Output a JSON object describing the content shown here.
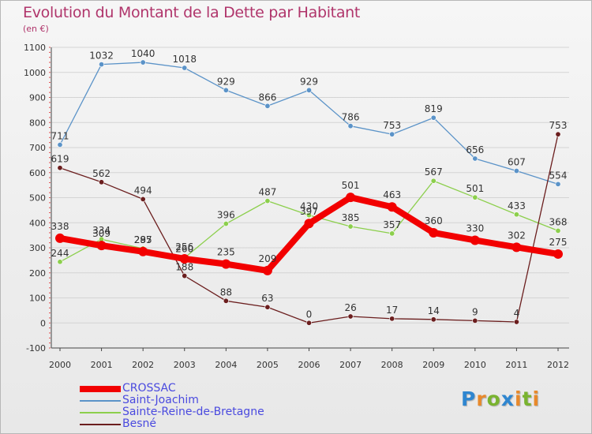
{
  "title": "Evolution du Montant de la Dette par Habitant",
  "subtitle": "(en €)",
  "brand": {
    "letters": [
      "P",
      "r",
      "o",
      "x",
      "i",
      "t",
      "i"
    ],
    "colors": [
      "#2f86d0",
      "#e8892b",
      "#79b32f",
      "#2f86d0",
      "#e8892b",
      "#79b32f",
      "#e8892b"
    ]
  },
  "chart_data": {
    "type": "line",
    "x": [
      "2000",
      "2001",
      "2002",
      "2003",
      "2004",
      "2005",
      "2006",
      "2007",
      "2008",
      "2009",
      "2010",
      "2011",
      "2012"
    ],
    "ylim": [
      -100,
      1100
    ],
    "yticks": [
      -100,
      0,
      100,
      200,
      300,
      400,
      500,
      600,
      700,
      800,
      900,
      1000,
      1100
    ],
    "grid": "horizontal",
    "legend_position": "bottom-left",
    "series": [
      {
        "name": "Saint-Joachim",
        "color": "#5b93c8",
        "values": [
          711,
          1032,
          1040,
          1018,
          929,
          866,
          929,
          786,
          753,
          819,
          656,
          607,
          554
        ]
      },
      {
        "name": "Sainte-Reine-de-Bretagne",
        "color": "#8ccf4c",
        "values": [
          244,
          334,
          297,
          260,
          396,
          487,
          430,
          385,
          357,
          567,
          501,
          433,
          368
        ]
      },
      {
        "name": "Besné",
        "color": "#6b1e1e",
        "values": [
          619,
          562,
          494,
          188,
          88,
          63,
          0,
          26,
          17,
          14,
          9,
          4,
          753
        ]
      },
      {
        "name": "CROSSAC",
        "color": "#f20000",
        "values": [
          338,
          309,
          285,
          256,
          235,
          209,
          397,
          501,
          463,
          360,
          330,
          302,
          275
        ]
      }
    ]
  }
}
